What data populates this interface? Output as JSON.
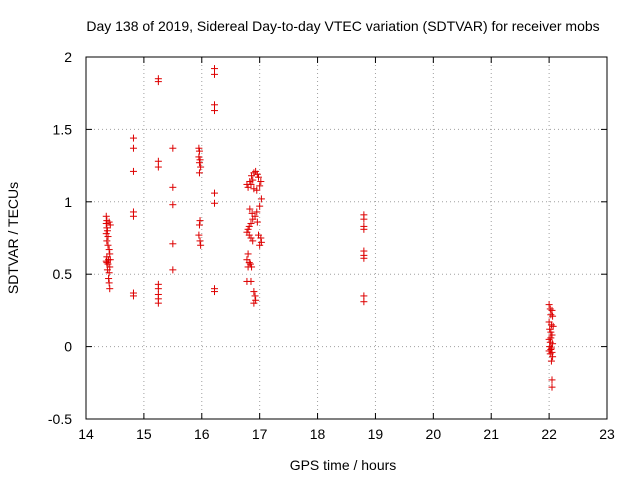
{
  "chart_data": {
    "type": "scatter",
    "title": "Day 138 of 2019, Sidereal Day-to-day VTEC variation (SDTVAR) for receiver mobs",
    "xlabel": "GPS time / hours",
    "ylabel": "SDTVAR / TECUs",
    "xlim": [
      14,
      23
    ],
    "ylim": [
      -0.5,
      2
    ],
    "x_ticks": [
      14,
      15,
      16,
      17,
      18,
      19,
      20,
      21,
      22,
      23
    ],
    "y_ticks": [
      -0.5,
      0,
      0.5,
      1,
      1.5,
      2
    ],
    "y_tick_labels": [
      "-0.5",
      "0",
      "0.5",
      "1",
      "1.5",
      "2"
    ],
    "grid": true,
    "marker": "+",
    "series": [
      {
        "name": "SDTVAR",
        "color": "#dd0000",
        "points": [
          [
            14.35,
            0.9
          ],
          [
            14.36,
            0.87
          ],
          [
            14.35,
            0.85
          ],
          [
            14.4,
            0.86
          ],
          [
            14.42,
            0.84
          ],
          [
            14.36,
            0.82
          ],
          [
            14.37,
            0.8
          ],
          [
            14.35,
            0.78
          ],
          [
            14.38,
            0.76
          ],
          [
            14.36,
            0.73
          ],
          [
            14.4,
            0.67
          ],
          [
            14.41,
            0.64
          ],
          [
            14.36,
            0.62
          ],
          [
            14.39,
            0.6
          ],
          [
            14.35,
            0.59
          ],
          [
            14.38,
            0.57
          ],
          [
            14.41,
            0.55
          ],
          [
            14.37,
            0.53
          ],
          [
            14.4,
            0.51
          ],
          [
            14.36,
            0.58
          ],
          [
            14.39,
            0.47
          ],
          [
            14.4,
            0.44
          ],
          [
            14.41,
            0.4
          ],
          [
            14.38,
            0.7
          ],
          [
            14.42,
            0.6
          ],
          [
            14.82,
            1.44
          ],
          [
            14.82,
            1.37
          ],
          [
            14.82,
            1.21
          ],
          [
            14.82,
            0.93
          ],
          [
            14.82,
            0.9
          ],
          [
            14.82,
            0.37
          ],
          [
            14.82,
            0.35
          ],
          [
            15.25,
            1.85
          ],
          [
            15.25,
            1.83
          ],
          [
            15.25,
            1.28
          ],
          [
            15.25,
            1.24
          ],
          [
            15.25,
            0.43
          ],
          [
            15.25,
            0.4
          ],
          [
            15.25,
            0.36
          ],
          [
            15.25,
            0.33
          ],
          [
            15.25,
            0.3
          ],
          [
            15.5,
            1.37
          ],
          [
            15.5,
            1.1
          ],
          [
            15.5,
            0.98
          ],
          [
            15.5,
            0.71
          ],
          [
            15.5,
            0.53
          ],
          [
            15.95,
            1.37
          ],
          [
            15.96,
            1.35
          ],
          [
            15.95,
            1.31
          ],
          [
            15.97,
            1.29
          ],
          [
            15.96,
            1.27
          ],
          [
            15.98,
            1.24
          ],
          [
            15.96,
            1.2
          ],
          [
            15.97,
            0.87
          ],
          [
            15.96,
            0.84
          ],
          [
            15.95,
            0.77
          ],
          [
            15.97,
            0.73
          ],
          [
            15.98,
            0.7
          ],
          [
            16.22,
            1.92
          ],
          [
            16.22,
            1.88
          ],
          [
            16.22,
            1.67
          ],
          [
            16.22,
            1.63
          ],
          [
            16.22,
            1.06
          ],
          [
            16.22,
            0.99
          ],
          [
            16.22,
            0.4
          ],
          [
            16.22,
            0.38
          ],
          [
            16.78,
            1.12
          ],
          [
            16.8,
            1.1
          ],
          [
            16.83,
            1.14
          ],
          [
            16.86,
            1.18
          ],
          [
            16.9,
            1.2
          ],
          [
            16.93,
            1.21
          ],
          [
            16.96,
            1.19
          ],
          [
            16.98,
            1.17
          ],
          [
            16.88,
            1.15
          ],
          [
            16.85,
            1.12
          ],
          [
            16.9,
            1.09
          ],
          [
            16.95,
            1.08
          ],
          [
            17.0,
            1.11
          ],
          [
            17.02,
            1.14
          ],
          [
            17.03,
            1.02
          ],
          [
            17.0,
            0.97
          ],
          [
            16.95,
            0.93
          ],
          [
            16.92,
            0.9
          ],
          [
            16.88,
            0.88
          ],
          [
            16.85,
            0.85
          ],
          [
            16.82,
            0.83
          ],
          [
            16.8,
            0.81
          ],
          [
            16.78,
            0.79
          ],
          [
            16.82,
            0.77
          ],
          [
            16.85,
            0.75
          ],
          [
            16.88,
            0.73
          ],
          [
            16.98,
            0.77
          ],
          [
            17.02,
            0.75
          ],
          [
            17.03,
            0.72
          ],
          [
            17.0,
            0.7
          ],
          [
            16.8,
            0.64
          ],
          [
            16.78,
            0.6
          ],
          [
            16.82,
            0.58
          ],
          [
            16.84,
            0.57
          ],
          [
            16.86,
            0.55
          ],
          [
            16.8,
            0.55
          ],
          [
            16.78,
            0.45
          ],
          [
            16.85,
            0.45
          ],
          [
            16.9,
            0.38
          ],
          [
            16.92,
            0.35
          ],
          [
            16.93,
            0.32
          ],
          [
            16.9,
            0.3
          ],
          [
            16.87,
            0.92
          ],
          [
            16.83,
            0.95
          ],
          [
            16.96,
            0.86
          ],
          [
            18.8,
            0.91
          ],
          [
            18.8,
            0.88
          ],
          [
            18.8,
            0.83
          ],
          [
            18.8,
            0.81
          ],
          [
            18.8,
            0.66
          ],
          [
            18.8,
            0.63
          ],
          [
            18.8,
            0.61
          ],
          [
            18.8,
            0.35
          ],
          [
            18.8,
            0.31
          ],
          [
            22.0,
            0.29
          ],
          [
            22.02,
            0.26
          ],
          [
            22.05,
            0.25
          ],
          [
            22.03,
            0.22
          ],
          [
            22.06,
            0.21
          ],
          [
            22.0,
            0.17
          ],
          [
            22.04,
            0.15
          ],
          [
            22.07,
            0.14
          ],
          [
            22.01,
            0.12
          ],
          [
            22.03,
            0.1
          ],
          [
            22.05,
            0.08
          ],
          [
            22.0,
            0.05
          ],
          [
            22.02,
            0.03
          ],
          [
            22.06,
            0.02
          ],
          [
            22.01,
            0.0
          ],
          [
            22.04,
            -0.01
          ],
          [
            22.03,
            -0.02
          ],
          [
            22.0,
            -0.03
          ],
          [
            22.05,
            -0.04
          ],
          [
            22.02,
            -0.05
          ],
          [
            22.06,
            -0.07
          ],
          [
            22.04,
            -0.1
          ],
          [
            22.05,
            -0.23
          ],
          [
            22.05,
            -0.28
          ],
          [
            22.03,
            0.06
          ]
        ]
      }
    ]
  }
}
